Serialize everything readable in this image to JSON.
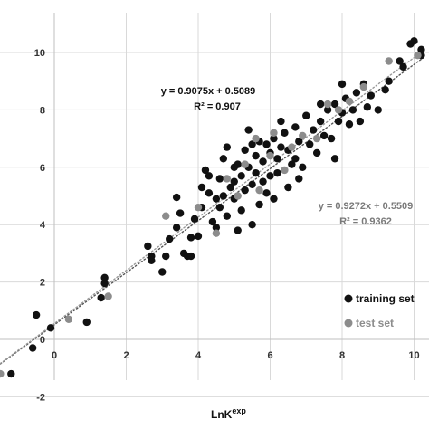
{
  "chart_data": {
    "type": "scatter",
    "title": "",
    "xlabel": "LnK",
    "xlabel_superscript": "exp",
    "ylabel": "",
    "xlim": [
      -1.5,
      10.3
    ],
    "ylim": [
      -2,
      11
    ],
    "x_ticks": [
      "0",
      "2",
      "4",
      "6",
      "8",
      "10"
    ],
    "y_ticks": [
      "-2",
      "0",
      "2",
      "4",
      "6",
      "8",
      "10"
    ],
    "grid": true,
    "legend_position": "bottom-right",
    "series": [
      {
        "name": "training set",
        "color": "#111111",
        "equation": "y = 0.9075x + 0.5089",
        "r2": "R² = 0.907",
        "slope": 0.9075,
        "intercept": 0.5089,
        "points": [
          [
            -1.2,
            -1.2
          ],
          [
            -0.6,
            -0.3
          ],
          [
            -0.5,
            0.85
          ],
          [
            -0.1,
            0.4
          ],
          [
            0.9,
            0.6
          ],
          [
            1.3,
            1.45
          ],
          [
            1.4,
            2.15
          ],
          [
            1.4,
            1.95
          ],
          [
            2.6,
            3.25
          ],
          [
            2.7,
            2.9
          ],
          [
            2.7,
            2.75
          ],
          [
            3.0,
            2.35
          ],
          [
            3.1,
            2.9
          ],
          [
            3.2,
            3.5
          ],
          [
            3.4,
            3.9
          ],
          [
            3.4,
            4.95
          ],
          [
            3.5,
            4.4
          ],
          [
            3.6,
            3.0
          ],
          [
            3.7,
            2.9
          ],
          [
            3.8,
            2.9
          ],
          [
            3.8,
            3.55
          ],
          [
            3.9,
            4.2
          ],
          [
            4.0,
            3.6
          ],
          [
            4.1,
            4.6
          ],
          [
            4.1,
            5.3
          ],
          [
            4.2,
            5.9
          ],
          [
            4.3,
            5.1
          ],
          [
            4.4,
            4.1
          ],
          [
            4.5,
            4.9
          ],
          [
            4.5,
            3.9
          ],
          [
            4.6,
            4.6
          ],
          [
            4.6,
            5.6
          ],
          [
            4.7,
            6.3
          ],
          [
            4.7,
            5.0
          ],
          [
            4.8,
            4.3
          ],
          [
            4.8,
            6.7
          ],
          [
            4.9,
            5.3
          ],
          [
            5.0,
            5.5
          ],
          [
            5.0,
            4.9
          ],
          [
            5.1,
            6.1
          ],
          [
            5.1,
            3.8
          ],
          [
            5.2,
            5.7
          ],
          [
            5.2,
            4.5
          ],
          [
            5.3,
            5.2
          ],
          [
            5.3,
            6.6
          ],
          [
            5.4,
            6.0
          ],
          [
            5.4,
            7.3
          ],
          [
            5.5,
            5.4
          ],
          [
            5.5,
            4.0
          ],
          [
            5.6,
            6.4
          ],
          [
            5.6,
            5.8
          ],
          [
            5.7,
            4.7
          ],
          [
            5.7,
            6.9
          ],
          [
            5.8,
            5.5
          ],
          [
            5.8,
            6.2
          ],
          [
            5.9,
            6.8
          ],
          [
            6.0,
            5.7
          ],
          [
            6.0,
            6.5
          ],
          [
            6.1,
            4.9
          ],
          [
            6.1,
            7.0
          ],
          [
            6.2,
            6.3
          ],
          [
            6.2,
            5.8
          ],
          [
            6.3,
            6.7
          ],
          [
            6.4,
            7.2
          ],
          [
            6.5,
            6.6
          ],
          [
            6.5,
            5.3
          ],
          [
            6.6,
            6.1
          ],
          [
            6.7,
            7.4
          ],
          [
            6.8,
            6.9
          ],
          [
            6.8,
            5.6
          ],
          [
            6.9,
            6.0
          ],
          [
            7.0,
            7.8
          ],
          [
            7.1,
            6.8
          ],
          [
            7.2,
            7.3
          ],
          [
            7.3,
            6.5
          ],
          [
            7.4,
            7.6
          ],
          [
            7.5,
            7.1
          ],
          [
            7.6,
            8.0
          ],
          [
            7.7,
            7.0
          ],
          [
            7.8,
            6.3
          ],
          [
            7.8,
            8.2
          ],
          [
            7.9,
            7.6
          ],
          [
            8.0,
            7.9
          ],
          [
            8.1,
            8.4
          ],
          [
            8.2,
            7.5
          ],
          [
            8.3,
            8.0
          ],
          [
            8.4,
            8.6
          ],
          [
            8.5,
            7.6
          ],
          [
            8.6,
            8.9
          ],
          [
            8.7,
            8.1
          ],
          [
            8.8,
            8.5
          ],
          [
            9.0,
            8.0
          ],
          [
            9.2,
            8.7
          ],
          [
            9.3,
            9.0
          ],
          [
            9.6,
            9.7
          ],
          [
            9.7,
            9.5
          ],
          [
            9.9,
            10.3
          ],
          [
            10.2,
            10.1
          ],
          [
            10.2,
            9.9
          ],
          [
            10.0,
            10.4
          ],
          [
            5.5,
            6.8
          ],
          [
            6.3,
            7.6
          ],
          [
            5.9,
            5.1
          ],
          [
            6.7,
            6.3
          ],
          [
            7.4,
            8.2
          ],
          [
            8.0,
            8.9
          ],
          [
            4.3,
            5.7
          ],
          [
            5.0,
            6.0
          ]
        ]
      },
      {
        "name": "test set",
        "color": "#8c8c8c",
        "equation": "y = 0.9272x + 0.5509",
        "r2": "R² = 0.9362",
        "slope": 0.9272,
        "intercept": 0.5509,
        "points": [
          [
            -1.5,
            -1.2
          ],
          [
            0.4,
            0.7
          ],
          [
            1.5,
            1.5
          ],
          [
            3.1,
            4.3
          ],
          [
            4.0,
            4.6
          ],
          [
            4.5,
            3.7
          ],
          [
            4.8,
            5.6
          ],
          [
            5.1,
            5.0
          ],
          [
            5.3,
            6.1
          ],
          [
            5.6,
            7.0
          ],
          [
            5.7,
            5.2
          ],
          [
            6.0,
            6.4
          ],
          [
            6.1,
            7.2
          ],
          [
            6.4,
            5.9
          ],
          [
            6.6,
            6.7
          ],
          [
            6.9,
            7.1
          ],
          [
            7.3,
            7.0
          ],
          [
            7.6,
            8.2
          ],
          [
            7.9,
            8.0
          ],
          [
            8.2,
            8.3
          ],
          [
            8.6,
            8.8
          ],
          [
            9.3,
            9.7
          ],
          [
            10.1,
            9.9
          ]
        ]
      }
    ]
  }
}
